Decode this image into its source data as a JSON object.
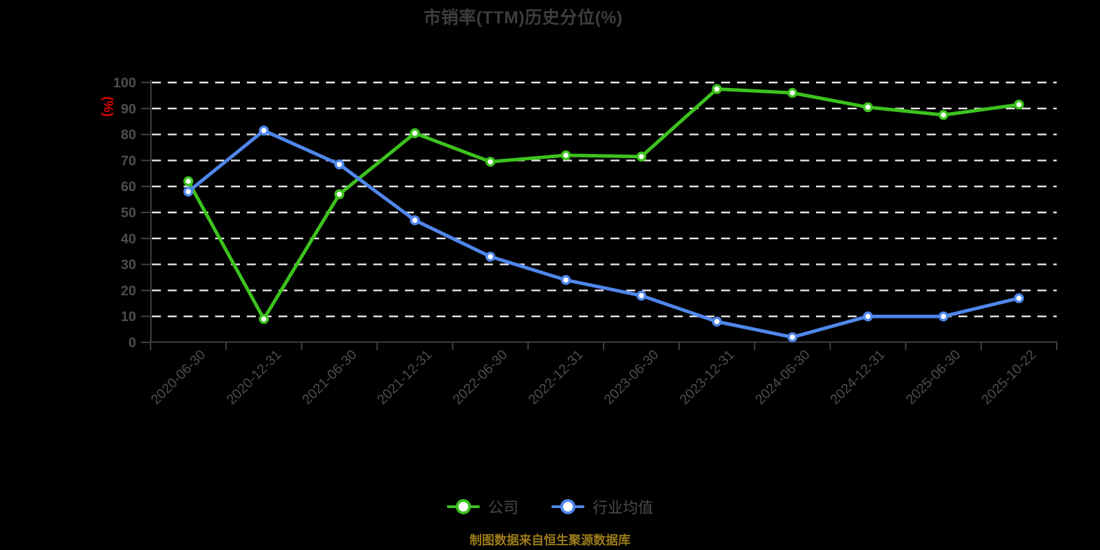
{
  "title": "市销率(TTM)历史分位(%)",
  "y_axis_name": "(%)",
  "source_note": "制图数据来自恒生聚源数据库",
  "legend": {
    "company": {
      "label": "公司",
      "color": "#3DC21E"
    },
    "industry": {
      "label": "行业均值",
      "color": "#5087EC"
    }
  },
  "colors": {
    "background": "#000000",
    "title_text": "#3D3D3D",
    "axis_line": "#404040",
    "tick_label": "#4D4D4D",
    "gridline": "#E8E8E8",
    "axis_name_text": "#E60000",
    "source_note_text": "#9A7A1A",
    "company_series": "#3DC21E",
    "industry_series": "#5087EC",
    "marker_fill": "#FFFFFF"
  },
  "chart_data": {
    "type": "line",
    "title": "市销率(TTM)历史分位(%)",
    "xlabel": "",
    "ylabel": "(%)",
    "ylim": [
      0,
      100
    ],
    "y_ticks": [
      0,
      10,
      20,
      30,
      40,
      50,
      60,
      70,
      80,
      90,
      100
    ],
    "grid": "horizontal-dashed",
    "legend_position": "bottom",
    "categories": [
      "2020-06-30",
      "2020-12-31",
      "2021-06-30",
      "2021-12-31",
      "2022-06-30",
      "2022-12-31",
      "2023-06-30",
      "2023-12-31",
      "2024-06-30",
      "2024-12-31",
      "2025-06-30",
      "2025-10-22"
    ],
    "series": [
      {
        "name": "公司",
        "color": "#3DC21E",
        "values": [
          62,
          9,
          57,
          80.5,
          69.5,
          72,
          71.5,
          97.5,
          96,
          90.5,
          87.5,
          91.5
        ]
      },
      {
        "name": "行业均值",
        "color": "#5087EC",
        "values": [
          58,
          81.5,
          68.5,
          47,
          33,
          24,
          18,
          8,
          2,
          10,
          10,
          17
        ]
      }
    ]
  }
}
